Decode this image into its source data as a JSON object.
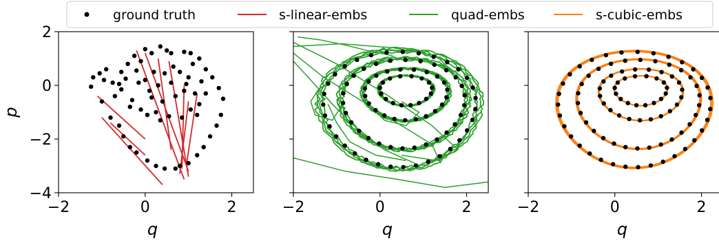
{
  "chart_data": {
    "type": "scatter",
    "legend": {
      "placement": "top",
      "entries": [
        {
          "label": "ground truth",
          "color": "#000000",
          "marker": "point"
        },
        {
          "label": "s-linear-embs",
          "color": "#d62728",
          "marker": "line"
        },
        {
          "label": "quad-embs",
          "color": "#2ca02c",
          "marker": "line"
        },
        {
          "label": "s-cubic-embs",
          "color": "#ff7f0e",
          "marker": "line"
        }
      ]
    },
    "panels": [
      {
        "xlabel": "q",
        "ylabel": "p",
        "xlim": [
          -2,
          2.5
        ],
        "ylim": [
          -4,
          2
        ],
        "xticks": [
          "−2",
          "0",
          "2"
        ],
        "yticks": [
          "2",
          "0",
          "−2",
          "−4"
        ],
        "series": [
          {
            "name": "ground truth",
            "type": "scatter",
            "color": "#000000",
            "points": [
              [
                -1.25,
                -0.05
              ],
              [
                -1.2,
                0.3
              ],
              [
                -1.05,
                0.45
              ],
              [
                -1.0,
                -0.6
              ],
              [
                -0.95,
                0.2
              ],
              [
                -0.9,
                0.6
              ],
              [
                -0.8,
                -1.2
              ],
              [
                -0.75,
                0.1
              ],
              [
                -0.6,
                -1.5
              ],
              [
                -0.55,
                0.5
              ],
              [
                -0.5,
                -1.9
              ],
              [
                -0.4,
                0.8
              ],
              [
                -0.35,
                -2.3
              ],
              [
                -0.25,
                1.1
              ],
              [
                -0.2,
                -2.5
              ],
              [
                -0.1,
                0.9
              ],
              [
                0.0,
                1.35
              ],
              [
                0.05,
                -2.8
              ],
              [
                0.15,
                1.2
              ],
              [
                0.25,
                -3.0
              ],
              [
                0.35,
                1.45
              ],
              [
                0.45,
                -3.1
              ],
              [
                0.5,
                1.3
              ],
              [
                0.6,
                1.2
              ],
              [
                0.7,
                -3.1
              ],
              [
                0.8,
                -3.0
              ],
              [
                0.9,
                1.25
              ],
              [
                1.0,
                -2.9
              ],
              [
                1.05,
                1.2
              ],
              [
                1.1,
                0.8
              ],
              [
                1.2,
                -2.6
              ],
              [
                1.25,
                1.0
              ],
              [
                1.35,
                -2.3
              ],
              [
                1.4,
                0.6
              ],
              [
                1.5,
                -1.9
              ],
              [
                1.55,
                0.3
              ],
              [
                1.65,
                -1.5
              ],
              [
                1.7,
                -0.1
              ],
              [
                1.75,
                -1.1
              ],
              [
                1.8,
                -0.5
              ],
              [
                -0.55,
                -0.15
              ],
              [
                -0.45,
                0.25
              ],
              [
                -0.3,
                -0.55
              ],
              [
                -0.2,
                0.55
              ],
              [
                -0.1,
                -0.9
              ],
              [
                0.0,
                0.2
              ],
              [
                0.05,
                -1.1
              ],
              [
                0.1,
                -0.2
              ],
              [
                0.2,
                0.5
              ],
              [
                0.25,
                -1.0
              ],
              [
                0.3,
                0.0
              ],
              [
                0.4,
                -0.6
              ],
              [
                0.45,
                0.45
              ],
              [
                0.55,
                -1.15
              ],
              [
                0.6,
                0.1
              ],
              [
                0.7,
                -0.4
              ],
              [
                0.8,
                0.5
              ],
              [
                0.85,
                -1.2
              ],
              [
                0.9,
                -0.2
              ],
              [
                1.0,
                0.3
              ],
              [
                1.05,
                -0.9
              ],
              [
                1.15,
                -0.3
              ],
              [
                1.25,
                -0.7
              ],
              [
                1.3,
                0.15
              ],
              [
                -0.7,
                -0.4
              ],
              [
                -0.6,
                0.05
              ],
              [
                0.15,
                -0.45
              ],
              [
                0.35,
                -1.3
              ],
              [
                0.95,
                0.05
              ],
              [
                1.2,
                -1.1
              ],
              [
                -0.35,
                -0.8
              ],
              [
                -0.15,
                0.1
              ],
              [
                0.65,
                0.7
              ],
              [
                1.4,
                -0.3
              ]
            ]
          },
          {
            "name": "s-linear-embs",
            "type": "line",
            "color": "#d62728",
            "segments": [
              [
                [
                  -1.1,
                  -0.4
                ],
                [
                  0.0,
                  -2.0
                ]
              ],
              [
                [
                  -1.0,
                  -1.2
                ],
                [
                  0.4,
                  -3.7
                ]
              ],
              [
                [
                  -0.8,
                  -1.4
                ],
                [
                  0.0,
                  -2.6
                ]
              ],
              [
                [
                  -0.2,
                  1.3
                ],
                [
                  0.9,
                  -3.5
                ]
              ],
              [
                [
                  0.0,
                  1.2
                ],
                [
                  1.0,
                  -3.2
                ]
              ],
              [
                [
                  0.3,
                  1.0
                ],
                [
                  0.6,
                  -2.4
                ]
              ],
              [
                [
                  0.55,
                  0.9
                ],
                [
                  1.0,
                  -3.4
                ]
              ],
              [
                [
                  1.0,
                  -0.6
                ],
                [
                  0.8,
                  -3.3
                ]
              ],
              [
                [
                  1.2,
                  -0.3
                ],
                [
                  0.95,
                  -3.0
                ]
              ],
              [
                [
                  0.9,
                  0.0
                ],
                [
                  0.85,
                  -3.1
                ]
              ]
            ]
          }
        ]
      },
      {
        "xlabel": "q",
        "ylabel": "",
        "xlim": [
          -2,
          2.5
        ],
        "ylim": [
          -4,
          2
        ],
        "xticks": [
          "−2",
          "0",
          "2"
        ],
        "yticks": [],
        "series": [
          {
            "name": "ground truth",
            "type": "scatter",
            "color": "#000000",
            "points": "orbits"
          },
          {
            "name": "quad-embs",
            "type": "line",
            "color": "#2ca02c",
            "curves": "orbits-distorted"
          }
        ]
      },
      {
        "xlabel": "q",
        "ylabel": "",
        "xlim": [
          -2,
          2.5
        ],
        "ylim": [
          -4,
          2
        ],
        "xticks": [
          "−2",
          "0",
          "2"
        ],
        "yticks": [],
        "series": [
          {
            "name": "ground truth",
            "type": "scatter",
            "color": "#000000",
            "points": "orbits"
          },
          {
            "name": "s-cubic-embs",
            "type": "line",
            "color": "#ff7f0e",
            "curves": "orbits"
          }
        ]
      }
    ],
    "orbits": [
      {
        "cx": 0.6,
        "cy": -0.2,
        "rx": 0.6,
        "ry": 0.55
      },
      {
        "cx": 0.6,
        "cy": -0.35,
        "rx": 0.95,
        "ry": 0.95
      },
      {
        "cx": 0.55,
        "cy": -0.7,
        "rx": 1.4,
        "ry": 1.65
      },
      {
        "cx": 0.45,
        "cy": -0.9,
        "rx": 1.75,
        "ry": 2.15
      }
    ]
  }
}
